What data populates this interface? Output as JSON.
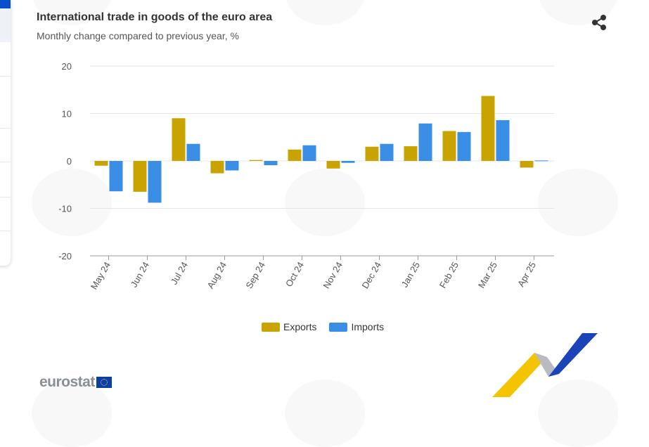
{
  "header": {
    "title": "International trade in goods of the euro area",
    "subtitle": "Monthly change compared to previous year, %"
  },
  "share": {
    "icon": "share-icon"
  },
  "colors": {
    "exports": "#ccA300",
    "imports": "#3a8ee6"
  },
  "chart_data": {
    "type": "bar",
    "title": "International trade in goods of the euro area",
    "subtitle": "Monthly change compared to previous year, %",
    "xlabel": "",
    "ylabel": "",
    "ylim": [
      -20,
      20
    ],
    "yticks": [
      20,
      10,
      0,
      -10,
      -20
    ],
    "grid": true,
    "legend_position": "bottom-center",
    "categories": [
      "May 24",
      "Jun 24",
      "Jul 24",
      "Aug 24",
      "Sep 24",
      "Oct 24",
      "Nov 24",
      "Dec 24",
      "Jan 25",
      "Feb 25",
      "Mar 25",
      "Apr 25"
    ],
    "series": [
      {
        "name": "Exports",
        "color": "#c9a400",
        "values": [
          -1.0,
          -6.5,
          9.0,
          -2.6,
          0.2,
          2.4,
          -1.6,
          3.0,
          3.1,
          6.3,
          13.7,
          -1.4
        ]
      },
      {
        "name": "Imports",
        "color": "#3a8ee6",
        "values": [
          -6.4,
          -8.8,
          3.6,
          -2.0,
          -0.9,
          3.3,
          -0.4,
          3.6,
          7.9,
          6.1,
          8.6,
          0.1
        ]
      }
    ]
  },
  "legend": {
    "items": [
      "Exports",
      "Imports"
    ]
  },
  "footer": {
    "brand": "eurostat"
  }
}
